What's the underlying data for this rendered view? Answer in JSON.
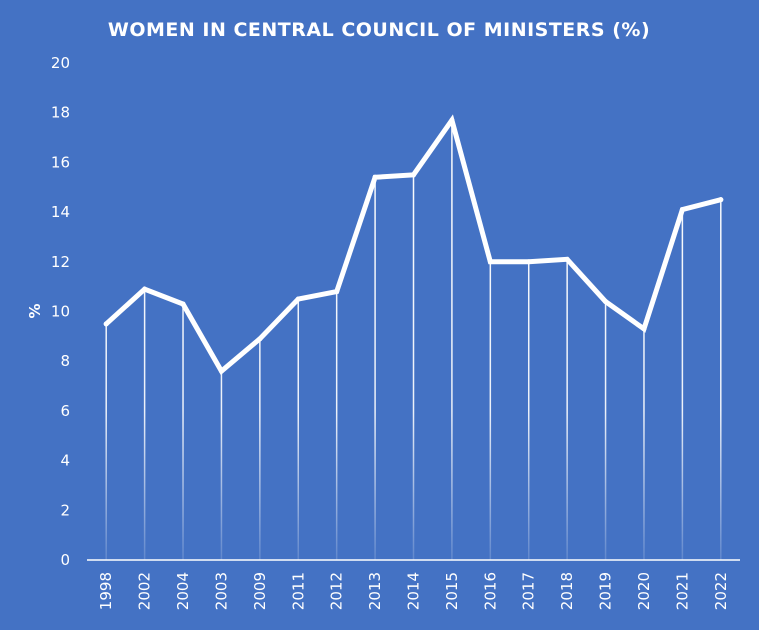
{
  "chart_data": {
    "type": "line",
    "title": "WOMEN IN CENTRAL COUNCIL OF MINISTERS (%)",
    "xlabel": "",
    "ylabel": "%",
    "ylim": [
      0,
      20
    ],
    "yticks": [
      "0",
      "2",
      "4",
      "6",
      "8",
      "10",
      "12",
      "14",
      "16",
      "18",
      "20"
    ],
    "ytick_values": [
      0,
      2,
      4,
      6,
      8,
      10,
      12,
      14,
      16,
      18,
      20
    ],
    "categories": [
      "1998",
      "2002",
      "2004",
      "2003",
      "2009",
      "2011",
      "2012",
      "2013",
      "2014",
      "2015",
      "2016",
      "2017",
      "2018",
      "2019",
      "2020",
      "2021",
      "2022"
    ],
    "series": [
      {
        "name": "Women in Central Council of Ministers (%)",
        "values": [
          9.5,
          10.9,
          10.3,
          7.6,
          8.9,
          10.5,
          10.8,
          15.4,
          15.5,
          17.7,
          12.0,
          12.0,
          12.1,
          10.4,
          9.3,
          14.1,
          14.5
        ]
      }
    ],
    "grid": false,
    "drop_lines": true,
    "legend": "none",
    "colors": {
      "background": "#4472c4",
      "line": "#ffffff",
      "text": "#ffffff"
    }
  }
}
